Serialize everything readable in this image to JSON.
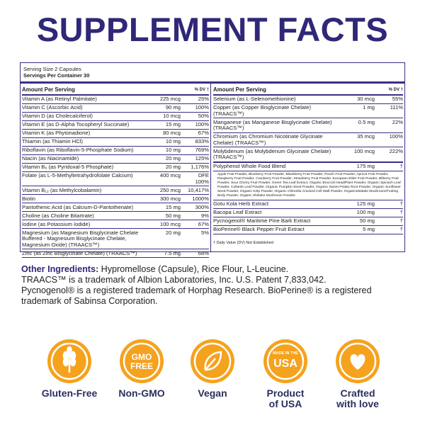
{
  "title": "SUPPLEMENT FACTS",
  "serving": {
    "size": "Serving Size 2 Capsules",
    "per_container": "Servings Per Container 30"
  },
  "left": {
    "header": {
      "amount": "Amount Per Serving",
      "dv": "% DV †"
    },
    "rows": [
      {
        "name": "Vitamin A (as Retinyl Palmitate)",
        "amount": "225 mcg",
        "dv": "25%"
      },
      {
        "name": "Vitamin C (Ascorbic Acid)",
        "amount": "90 mg",
        "dv": "100%"
      },
      {
        "name": "Vitamin D (as Cholecalciferol)",
        "amount": "10 mcg",
        "dv": "50%"
      },
      {
        "name": "Vitamin E (as D-Alpha Tocopheryl Succinate)",
        "amount": "15 mg",
        "dv": "100%"
      },
      {
        "name": "Vitamin K (as Phytonadione)",
        "amount": "80 mcg",
        "dv": "67%"
      },
      {
        "name": "Thiamin (as Thiamin HCl)",
        "amount": "10 mg",
        "dv": "833%"
      },
      {
        "name": "Riboflavin (as Riboflavin-5-Phosphate Sodium)",
        "amount": "10 mg",
        "dv": "769%"
      },
      {
        "name": "Niacin (as Niacinamide)",
        "amount": "20 mg",
        "dv": "125%"
      },
      {
        "name": "Vitamin B₆ (as Pyridoxal-5 Phosphate)",
        "amount": "20 mg",
        "dv": "1,176%"
      },
      {
        "name": "Folate (as L-5-Methyltetrahydrofolate Calcium)",
        "amount": "400 mcg",
        "dv": "DFE 100%"
      },
      {
        "name": "Vitamin B₁₂ (as Methylcobalamin)",
        "amount": "250 mcg",
        "dv": "10,417%"
      },
      {
        "name": "Biotin",
        "amount": "300 mcg",
        "dv": "1000%"
      },
      {
        "name": "Pantothenic Acid (as Calcium-D-Pantothenate)",
        "amount": "15 mg",
        "dv": "300%"
      },
      {
        "name": "Choline (as Choline Bitartrate)",
        "amount": "50 mg",
        "dv": "9%"
      },
      {
        "name": "Iodine (as Potassium Iodide)",
        "amount": "100 mcg",
        "dv": "67%"
      },
      {
        "name": "Magnesium (as Magnesium Bisglycinate Chelate Buffered - Magnesium Bisglycinate Chelate, Magnesium Oxide) (TRAACS™)",
        "amount": "20 mg",
        "dv": "5%"
      },
      {
        "name": "Zinc (as Zinc Bisglycinate Chelate) (TRAACS™)",
        "amount": "7.5 mg",
        "dv": "68%"
      }
    ]
  },
  "right": {
    "header": {
      "amount": "Amount Per Serving",
      "dv": "% DV †"
    },
    "rows": [
      {
        "name": "Selenium (as L-Selenomethionine)",
        "amount": "30 mcg",
        "dv": "55%"
      },
      {
        "name": "Copper (as Copper Bisglycinate Chelate) (TRAACS™)",
        "amount": "1 mg",
        "dv": "111%"
      },
      {
        "name": "Manganese (as Manganese Bisglycinate Chelate) (TRAACS™)",
        "amount": "0.5 mg",
        "dv": "22%"
      },
      {
        "name": "Chromium (as Chromium Nicotinate Glycinate Chelate) (TRAACS™)",
        "amount": "35 mcg",
        "dv": "100%"
      },
      {
        "name": "Molybdenum (as Molybdenum Glycinate Chelate) (TRAACS™)",
        "amount": "100 mcg",
        "dv": "222%"
      }
    ],
    "blend": {
      "name": "Polyphenol Whole Food Blend",
      "amount": "175 mg",
      "dv": "†",
      "description": "Apple Fruit Powder, Blueberry Fruit Powder, Blackberry Fruit Powder, Peach Fruit Powder, Apricot Fruit Powder, Raspberry Fruit Powder, Cranberry Fruit Powder, Strawberry Fruit Powder, European Elder Fruit Powder, Bilberry Fruit Powder, Sour Cherry Fruit Powder, Green Tea Leaf Extract, Organic Broccoli Head/Plant Powder, Organic Spinach Leaf Powder, Collards Leaf Powder, Organic Pumpkin Seed Powder, Organic Sweet Potato Root Powder, Organic Sunflower Seed Powder, Organic Kelp Powder, Organic Chlorella Cracked Cell Wall Powder, OrganicMaitake Mushroom/Fruiting Body Powder, Organic Shiitake Mushroom Powder."
    },
    "extracts": [
      {
        "name": "Gotu Kola Herb Extract",
        "amount": "125 mg",
        "dv": "†"
      },
      {
        "name": "Bacopa Leaf Extract",
        "amount": "100 mg",
        "dv": "†"
      },
      {
        "name": "Pycnogenol® Maritime Pine Bark Extract",
        "amount": "50 mg",
        "dv": "†"
      },
      {
        "name": "BioPerine® Black Pepper Fruit Extract",
        "amount": "5 mg",
        "dv": "†"
      }
    ],
    "footnote": "† Daily Value (DV) Not Established"
  },
  "other_ingredients": {
    "label": "Other Ingredients:",
    "text": "Hypromellose (Capsule), Rice Flour, L-Leucine.",
    "lines": [
      "TRAACS™ is a trademark of Albion Laboratories, Inc. U.S. Patent 7,833,042.",
      "Pycnogenol® is a registered trademark of Horphag Research. BioPerine® is a registered trademark of Sabinsa Corporation."
    ]
  },
  "badges": [
    {
      "label": [
        "Gluten-Free"
      ]
    },
    {
      "label": [
        "Non-GMO"
      ],
      "icon_text": [
        "GMO",
        "FREE"
      ]
    },
    {
      "label": [
        "Vegan"
      ]
    },
    {
      "label": [
        "Product",
        "of USA"
      ],
      "icon_text": [
        "MADE IN THE",
        "USA"
      ]
    },
    {
      "label": [
        "Crafted",
        "with love"
      ]
    }
  ]
}
